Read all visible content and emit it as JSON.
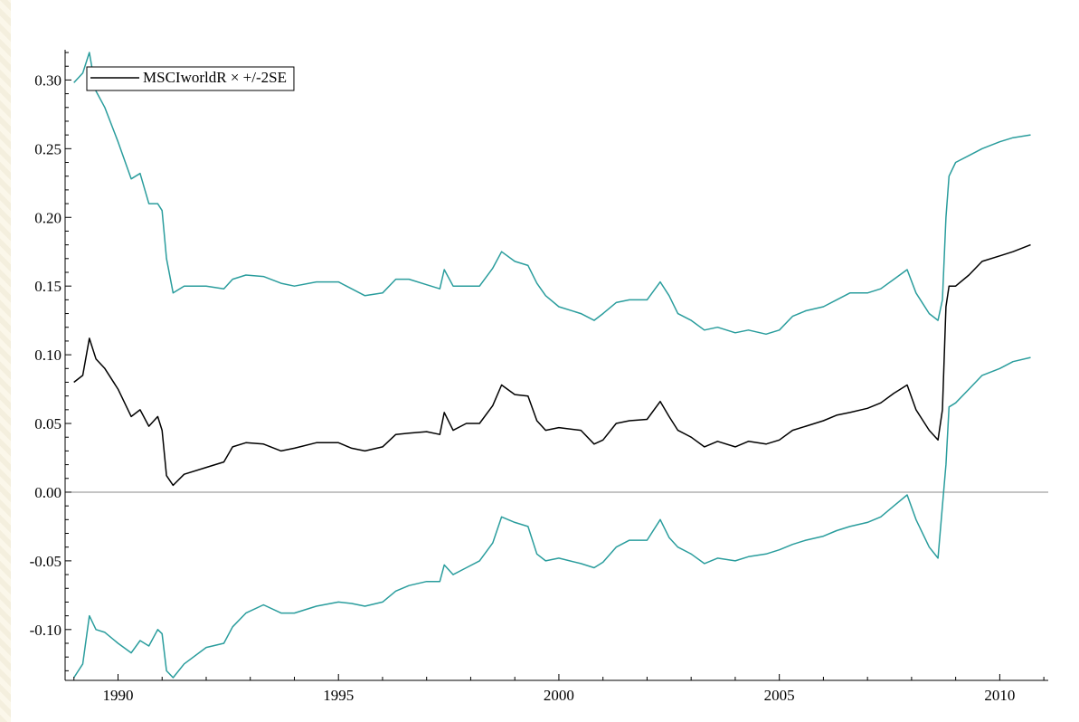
{
  "colors": {
    "main": "#000000",
    "band": "#2a9d9d",
    "axis": "#000000",
    "zero_line": "#888888"
  },
  "chart_data": {
    "type": "line",
    "title": "",
    "xlabel": "",
    "ylabel": "",
    "xlim": [
      1988.8,
      2011.1
    ],
    "ylim": [
      -0.137,
      0.322
    ],
    "x_ticks": [
      1990,
      1995,
      2000,
      2005,
      2010
    ],
    "x_tick_labels": [
      "1990",
      "1995",
      "2000",
      "2005",
      "2010"
    ],
    "y_ticks": [
      -0.1,
      -0.05,
      0.0,
      0.05,
      0.1,
      0.15,
      0.2,
      0.25,
      0.3
    ],
    "y_tick_labels": [
      "-0.10",
      "-0.05",
      "0.00",
      "0.05",
      "0.10",
      "0.15",
      "0.20",
      "0.25",
      "0.30"
    ],
    "grid": false,
    "zero_line": true,
    "legend": {
      "position": "top-left",
      "entries": [
        "MSCIworldR × +/-2SE"
      ]
    },
    "series": [
      {
        "name": "MSCIworldR",
        "color": "#000000",
        "x": [
          1989.0,
          1989.2,
          1989.35,
          1989.5,
          1989.7,
          1990.0,
          1990.3,
          1990.5,
          1990.7,
          1990.9,
          1991.0,
          1991.1,
          1991.25,
          1991.5,
          1992.0,
          1992.4,
          1992.6,
          1992.9,
          1993.3,
          1993.7,
          1994.0,
          1994.5,
          1995.0,
          1995.3,
          1995.6,
          1996.0,
          1996.3,
          1996.6,
          1997.0,
          1997.3,
          1997.4,
          1997.6,
          1997.9,
          1998.2,
          1998.5,
          1998.7,
          1999.0,
          1999.3,
          1999.5,
          1999.7,
          2000.0,
          2000.5,
          2000.8,
          2001.0,
          2001.3,
          2001.6,
          2002.0,
          2002.3,
          2002.5,
          2002.7,
          2003.0,
          2003.3,
          2003.6,
          2004.0,
          2004.3,
          2004.7,
          2005.0,
          2005.3,
          2005.6,
          2006.0,
          2006.3,
          2006.6,
          2007.0,
          2007.3,
          2007.6,
          2007.9,
          2008.1,
          2008.4,
          2008.6,
          2008.7,
          2008.78,
          2008.85,
          2009.0,
          2009.3,
          2009.6,
          2010.0,
          2010.3,
          2010.7
        ],
        "y": [
          0.08,
          0.085,
          0.112,
          0.097,
          0.09,
          0.075,
          0.055,
          0.06,
          0.048,
          0.055,
          0.045,
          0.012,
          0.005,
          0.013,
          0.018,
          0.022,
          0.033,
          0.036,
          0.035,
          0.03,
          0.032,
          0.036,
          0.036,
          0.032,
          0.03,
          0.033,
          0.042,
          0.043,
          0.044,
          0.042,
          0.058,
          0.045,
          0.05,
          0.05,
          0.063,
          0.078,
          0.071,
          0.07,
          0.052,
          0.045,
          0.047,
          0.045,
          0.035,
          0.038,
          0.05,
          0.052,
          0.053,
          0.066,
          0.055,
          0.045,
          0.04,
          0.033,
          0.037,
          0.033,
          0.037,
          0.035,
          0.038,
          0.045,
          0.048,
          0.052,
          0.056,
          0.058,
          0.061,
          0.065,
          0.072,
          0.078,
          0.06,
          0.045,
          0.038,
          0.06,
          0.135,
          0.15,
          0.15,
          0.158,
          0.168,
          0.172,
          0.175,
          0.18
        ]
      },
      {
        "name": "+2SE",
        "color": "#2a9d9d",
        "x": [
          1989.0,
          1989.2,
          1989.35,
          1989.5,
          1989.7,
          1990.0,
          1990.3,
          1990.5,
          1990.7,
          1990.9,
          1991.0,
          1991.1,
          1991.25,
          1991.5,
          1992.0,
          1992.4,
          1992.6,
          1992.9,
          1993.3,
          1993.7,
          1994.0,
          1994.5,
          1995.0,
          1995.3,
          1995.6,
          1996.0,
          1996.3,
          1996.6,
          1997.0,
          1997.3,
          1997.4,
          1997.6,
          1997.9,
          1998.2,
          1998.5,
          1998.7,
          1999.0,
          1999.3,
          1999.5,
          1999.7,
          2000.0,
          2000.5,
          2000.8,
          2001.0,
          2001.3,
          2001.6,
          2002.0,
          2002.3,
          2002.5,
          2002.7,
          2003.0,
          2003.3,
          2003.6,
          2004.0,
          2004.3,
          2004.7,
          2005.0,
          2005.3,
          2005.6,
          2006.0,
          2006.3,
          2006.6,
          2007.0,
          2007.3,
          2007.6,
          2007.9,
          2008.1,
          2008.4,
          2008.6,
          2008.7,
          2008.78,
          2008.85,
          2009.0,
          2009.3,
          2009.6,
          2010.0,
          2010.3,
          2010.7
        ],
        "y": [
          0.298,
          0.305,
          0.32,
          0.292,
          0.28,
          0.255,
          0.228,
          0.232,
          0.21,
          0.21,
          0.205,
          0.17,
          0.145,
          0.15,
          0.15,
          0.148,
          0.155,
          0.158,
          0.157,
          0.152,
          0.15,
          0.153,
          0.153,
          0.148,
          0.143,
          0.145,
          0.155,
          0.155,
          0.151,
          0.148,
          0.162,
          0.15,
          0.15,
          0.15,
          0.163,
          0.175,
          0.168,
          0.165,
          0.152,
          0.143,
          0.135,
          0.13,
          0.125,
          0.13,
          0.138,
          0.14,
          0.14,
          0.153,
          0.143,
          0.13,
          0.125,
          0.118,
          0.12,
          0.116,
          0.118,
          0.115,
          0.118,
          0.128,
          0.132,
          0.135,
          0.14,
          0.145,
          0.145,
          0.148,
          0.155,
          0.162,
          0.145,
          0.13,
          0.125,
          0.14,
          0.2,
          0.23,
          0.24,
          0.245,
          0.25,
          0.255,
          0.258,
          0.26
        ]
      },
      {
        "name": "-2SE",
        "color": "#2a9d9d",
        "x": [
          1989.0,
          1989.2,
          1989.35,
          1989.5,
          1989.7,
          1990.0,
          1990.3,
          1990.5,
          1990.7,
          1990.9,
          1991.0,
          1991.1,
          1991.25,
          1991.5,
          1992.0,
          1992.4,
          1992.6,
          1992.9,
          1993.3,
          1993.7,
          1994.0,
          1994.5,
          1995.0,
          1995.3,
          1995.6,
          1996.0,
          1996.3,
          1996.6,
          1997.0,
          1997.3,
          1997.4,
          1997.6,
          1997.9,
          1998.2,
          1998.5,
          1998.7,
          1999.0,
          1999.3,
          1999.5,
          1999.7,
          2000.0,
          2000.5,
          2000.8,
          2001.0,
          2001.3,
          2001.6,
          2002.0,
          2002.3,
          2002.5,
          2002.7,
          2003.0,
          2003.3,
          2003.6,
          2004.0,
          2004.3,
          2004.7,
          2005.0,
          2005.3,
          2005.6,
          2006.0,
          2006.3,
          2006.6,
          2007.0,
          2007.3,
          2007.6,
          2007.9,
          2008.1,
          2008.4,
          2008.6,
          2008.7,
          2008.78,
          2008.85,
          2009.0,
          2009.3,
          2009.6,
          2010.0,
          2010.3,
          2010.7
        ],
        "y": [
          -0.135,
          -0.125,
          -0.09,
          -0.1,
          -0.102,
          -0.11,
          -0.117,
          -0.108,
          -0.112,
          -0.1,
          -0.103,
          -0.13,
          -0.135,
          -0.125,
          -0.113,
          -0.11,
          -0.098,
          -0.088,
          -0.082,
          -0.088,
          -0.088,
          -0.083,
          -0.08,
          -0.081,
          -0.083,
          -0.08,
          -0.072,
          -0.068,
          -0.065,
          -0.065,
          -0.053,
          -0.06,
          -0.055,
          -0.05,
          -0.037,
          -0.018,
          -0.022,
          -0.025,
          -0.045,
          -0.05,
          -0.048,
          -0.052,
          -0.055,
          -0.051,
          -0.04,
          -0.035,
          -0.035,
          -0.02,
          -0.033,
          -0.04,
          -0.045,
          -0.052,
          -0.048,
          -0.05,
          -0.047,
          -0.045,
          -0.042,
          -0.038,
          -0.035,
          -0.032,
          -0.028,
          -0.025,
          -0.022,
          -0.018,
          -0.01,
          -0.002,
          -0.02,
          -0.04,
          -0.048,
          -0.01,
          0.02,
          0.062,
          0.065,
          0.075,
          0.085,
          0.09,
          0.095,
          0.098
        ]
      }
    ]
  }
}
